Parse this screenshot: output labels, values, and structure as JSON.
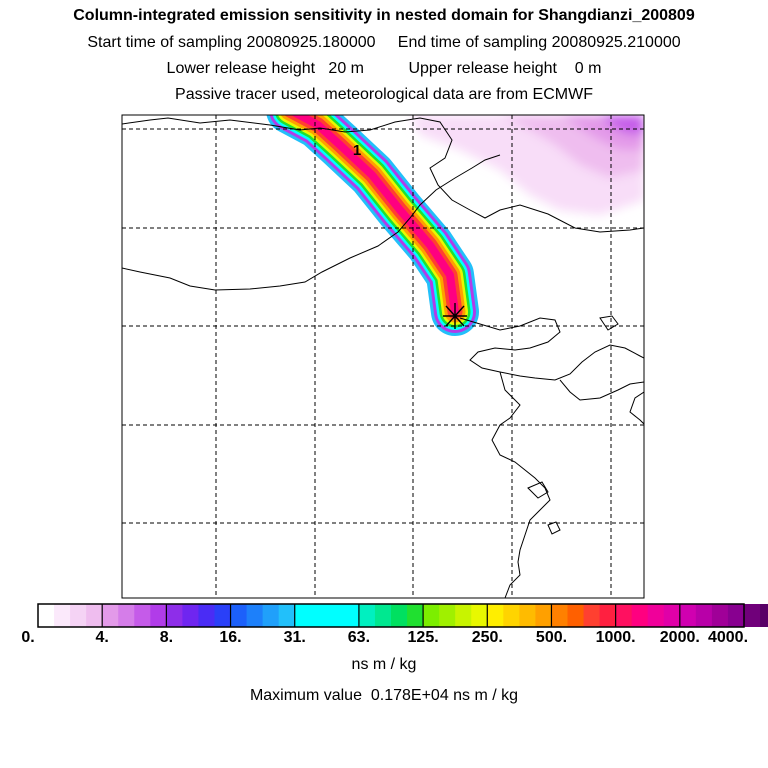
{
  "header": {
    "title": "Column-integrated emission sensitivity in nested domain for Shangdianzi_200809",
    "sampling_line": "Start time of sampling 20080925.180000     End time of sampling 20080925.210000",
    "release_line": "Lower release height   20 m          Upper release height    0 m",
    "tracer_line": "Passive tracer used, meteorological data are from ECMWF"
  },
  "map": {
    "plume_label": "1",
    "release_marker": "asterisk-icon"
  },
  "colorbar": {
    "ticks": [
      "0.",
      "4.",
      "8.",
      "16.",
      "31.",
      "63.",
      "125.",
      "250.",
      "500.",
      "1000.",
      "2000.",
      "4000."
    ],
    "colors": [
      "#ffffff",
      "#fbe9fb",
      "#f5d3f5",
      "#efbdef",
      "#e39ae9",
      "#d57de9",
      "#c55be9",
      "#b13ce9",
      "#8e2ee9",
      "#6f26f0",
      "#4a2cf5",
      "#2a40f8",
      "#1c60fa",
      "#1d80fa",
      "#20a0fa",
      "#22c0fa",
      "#00ffff",
      "#00ffff",
      "#00ffff",
      "#00ffff",
      "#00f0c0",
      "#00e890",
      "#00e060",
      "#20e030",
      "#7cee00",
      "#a0f000",
      "#c8f400",
      "#e8f800",
      "#ffee00",
      "#ffd400",
      "#ffbb00",
      "#ffa000",
      "#ff8000",
      "#ff6000",
      "#ff4030",
      "#ff2040",
      "#ff1060",
      "#ff0080",
      "#f0009a",
      "#e000a8",
      "#d000b0",
      "#b800a8",
      "#a00098",
      "#880090",
      "#70007a",
      "#580066",
      "#42004f",
      "#300038"
    ],
    "units": "ns m / kg",
    "max_value_text": "Maximum value  0.178E+04 ns m / kg"
  }
}
